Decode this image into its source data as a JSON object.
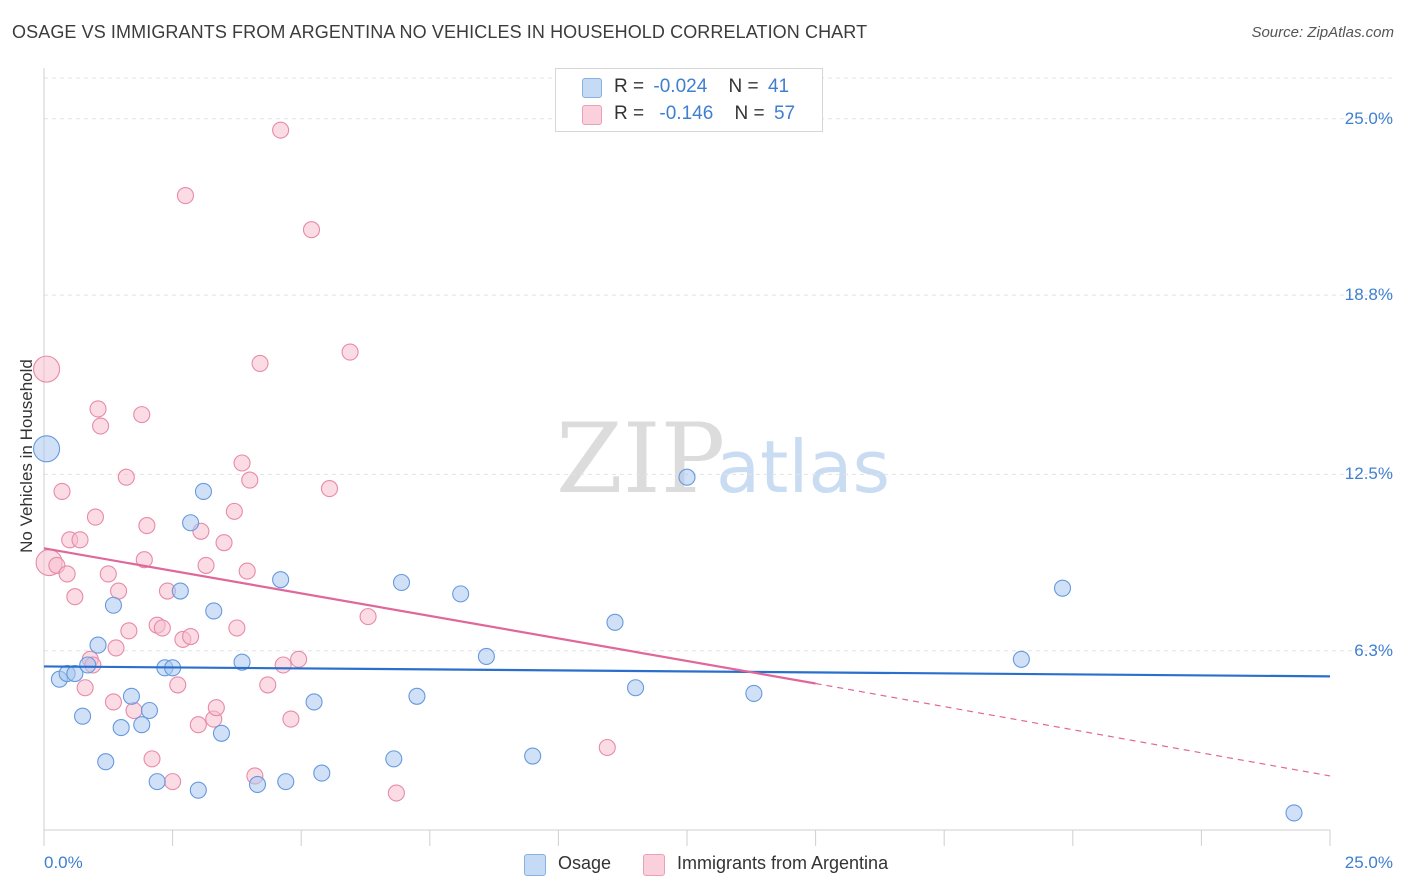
{
  "title": "OSAGE VS IMMIGRANTS FROM ARGENTINA NO VEHICLES IN HOUSEHOLD CORRELATION CHART",
  "source": "Source: ZipAtlas.com",
  "watermark": {
    "zip": "ZIP",
    "atlas": "atlas"
  },
  "legend": {
    "osage": {
      "r_label": "R =",
      "r_value": "-0.024",
      "n_label": "N =",
      "n_value": "41"
    },
    "argentina": {
      "r_label": "R =",
      "r_value": "-0.146",
      "n_label": "N =",
      "n_value": "57"
    }
  },
  "bottom_legend": {
    "osage": "Osage",
    "argentina": "Immigrants from Argentina"
  },
  "colors": {
    "osage_fill": "#aac8f0",
    "osage_stroke": "#6699dd",
    "osage_line": "#2a6fcc",
    "argentina_fill": "#f7c0d0",
    "argentina_stroke": "#e88aa8",
    "argentina_line": "#e0679a",
    "tick_label": "#3f7fcf",
    "grid": "#e3e3e3"
  },
  "chart_data": {
    "type": "scatter",
    "title": "OSAGE VS IMMIGRANTS FROM ARGENTINA NO VEHICLES IN HOUSEHOLD CORRELATION CHART",
    "xlabel": "",
    "ylabel": "No Vehicles in Household",
    "xlim": [
      0,
      25
    ],
    "ylim": [
      0,
      25.8
    ],
    "x_tick_labels": [
      "0.0%",
      "25.0%"
    ],
    "y_ticks": [
      6.3,
      12.5,
      18.8,
      25.0
    ],
    "y_tick_labels": [
      "6.3%",
      "12.5%",
      "18.8%",
      "25.0%"
    ],
    "grid": true,
    "legend_position": "top-center",
    "series": [
      {
        "name": "Osage",
        "r": -0.024,
        "n": 41,
        "trend": {
          "x0": 0,
          "y0": 5.75,
          "x1": 25,
          "y1": 5.4
        },
        "points": [
          {
            "x": 0.05,
            "y": 13.4,
            "big": true
          },
          {
            "x": 0.3,
            "y": 5.3
          },
          {
            "x": 0.45,
            "y": 5.5
          },
          {
            "x": 0.6,
            "y": 5.5
          },
          {
            "x": 0.75,
            "y": 4.0
          },
          {
            "x": 0.85,
            "y": 5.8
          },
          {
            "x": 1.05,
            "y": 6.5
          },
          {
            "x": 1.2,
            "y": 2.4
          },
          {
            "x": 1.35,
            "y": 7.9
          },
          {
            "x": 1.5,
            "y": 3.6
          },
          {
            "x": 1.7,
            "y": 4.7
          },
          {
            "x": 1.9,
            "y": 3.7
          },
          {
            "x": 2.05,
            "y": 4.2
          },
          {
            "x": 2.2,
            "y": 1.7
          },
          {
            "x": 2.35,
            "y": 5.7
          },
          {
            "x": 2.5,
            "y": 5.7
          },
          {
            "x": 2.65,
            "y": 8.4
          },
          {
            "x": 2.85,
            "y": 10.8
          },
          {
            "x": 3.0,
            "y": 1.4
          },
          {
            "x": 3.1,
            "y": 11.9
          },
          {
            "x": 3.3,
            "y": 7.7
          },
          {
            "x": 3.45,
            "y": 3.4
          },
          {
            "x": 3.85,
            "y": 5.9
          },
          {
            "x": 4.15,
            "y": 1.6
          },
          {
            "x": 4.6,
            "y": 8.8
          },
          {
            "x": 4.7,
            "y": 1.7
          },
          {
            "x": 5.25,
            "y": 4.5
          },
          {
            "x": 5.4,
            "y": 2.0
          },
          {
            "x": 6.8,
            "y": 2.5
          },
          {
            "x": 6.95,
            "y": 8.7
          },
          {
            "x": 7.25,
            "y": 4.7
          },
          {
            "x": 8.1,
            "y": 8.3
          },
          {
            "x": 8.6,
            "y": 6.1
          },
          {
            "x": 9.5,
            "y": 2.6
          },
          {
            "x": 11.1,
            "y": 7.3
          },
          {
            "x": 11.5,
            "y": 5.0
          },
          {
            "x": 12.5,
            "y": 12.4
          },
          {
            "x": 13.8,
            "y": 4.8
          },
          {
            "x": 19.0,
            "y": 6.0
          },
          {
            "x": 19.8,
            "y": 8.5
          },
          {
            "x": 24.3,
            "y": 0.6
          }
        ]
      },
      {
        "name": "Immigrants from Argentina",
        "r": -0.146,
        "n": 57,
        "trend": {
          "x0": 0,
          "y0": 9.9,
          "x1": 15.0,
          "y1": 5.15,
          "dash_x1": 25,
          "dash_y1": 1.9
        },
        "points": [
          {
            "x": 0.05,
            "y": 16.2,
            "big": true
          },
          {
            "x": 0.1,
            "y": 9.4,
            "big": true
          },
          {
            "x": 0.25,
            "y": 9.3
          },
          {
            "x": 0.35,
            "y": 11.9
          },
          {
            "x": 0.45,
            "y": 9.0
          },
          {
            "x": 0.5,
            "y": 10.2
          },
          {
            "x": 0.6,
            "y": 8.2
          },
          {
            "x": 0.7,
            "y": 10.2
          },
          {
            "x": 0.8,
            "y": 5.0
          },
          {
            "x": 0.9,
            "y": 6.0
          },
          {
            "x": 0.95,
            "y": 5.8
          },
          {
            "x": 1.0,
            "y": 11.0
          },
          {
            "x": 1.05,
            "y": 14.8
          },
          {
            "x": 1.1,
            "y": 14.2
          },
          {
            "x": 1.25,
            "y": 9.0
          },
          {
            "x": 1.35,
            "y": 4.5
          },
          {
            "x": 1.4,
            "y": 6.4
          },
          {
            "x": 1.45,
            "y": 8.4
          },
          {
            "x": 1.6,
            "y": 12.4
          },
          {
            "x": 1.65,
            "y": 7.0
          },
          {
            "x": 1.75,
            "y": 4.2
          },
          {
            "x": 1.9,
            "y": 14.6
          },
          {
            "x": 1.95,
            "y": 9.5
          },
          {
            "x": 2.0,
            "y": 10.7
          },
          {
            "x": 2.1,
            "y": 2.5
          },
          {
            "x": 2.2,
            "y": 7.2
          },
          {
            "x": 2.3,
            "y": 7.1
          },
          {
            "x": 2.4,
            "y": 8.4
          },
          {
            "x": 2.5,
            "y": 1.7
          },
          {
            "x": 2.6,
            "y": 5.1
          },
          {
            "x": 2.7,
            "y": 6.7
          },
          {
            "x": 2.75,
            "y": 22.3
          },
          {
            "x": 2.85,
            "y": 6.8
          },
          {
            "x": 3.0,
            "y": 3.7
          },
          {
            "x": 3.05,
            "y": 10.5
          },
          {
            "x": 3.15,
            "y": 9.3
          },
          {
            "x": 3.3,
            "y": 3.9
          },
          {
            "x": 3.35,
            "y": 4.3
          },
          {
            "x": 3.5,
            "y": 10.1
          },
          {
            "x": 3.7,
            "y": 11.2
          },
          {
            "x": 3.75,
            "y": 7.1
          },
          {
            "x": 3.85,
            "y": 12.9
          },
          {
            "x": 3.95,
            "y": 9.1
          },
          {
            "x": 4.0,
            "y": 12.3
          },
          {
            "x": 4.1,
            "y": 1.9
          },
          {
            "x": 4.2,
            "y": 16.4
          },
          {
            "x": 4.35,
            "y": 5.1
          },
          {
            "x": 4.6,
            "y": 24.6
          },
          {
            "x": 4.65,
            "y": 5.8
          },
          {
            "x": 4.8,
            "y": 3.9
          },
          {
            "x": 4.95,
            "y": 6.0
          },
          {
            "x": 5.2,
            "y": 21.1
          },
          {
            "x": 5.55,
            "y": 12.0
          },
          {
            "x": 5.95,
            "y": 16.8
          },
          {
            "x": 6.3,
            "y": 7.5
          },
          {
            "x": 6.85,
            "y": 1.3
          },
          {
            "x": 10.95,
            "y": 2.9
          }
        ]
      }
    ]
  }
}
